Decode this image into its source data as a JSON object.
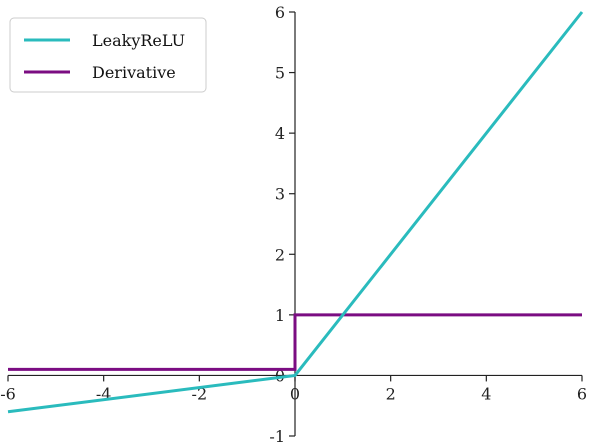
{
  "chart_data": {
    "type": "line",
    "title": "",
    "xlabel": "",
    "ylabel": "",
    "xlim": [
      -6,
      6
    ],
    "ylim": [
      -1,
      6
    ],
    "x_ticks": [
      -6,
      -4,
      -2,
      0,
      2,
      4,
      6
    ],
    "x_tick_labels": [
      "-6",
      "-4",
      "-2",
      "0",
      "2",
      "4",
      "6"
    ],
    "y_ticks": [
      -1,
      0,
      1,
      2,
      3,
      4,
      5,
      6
    ],
    "y_tick_labels": [
      "-1",
      "0",
      "1",
      "2",
      "3",
      "4",
      "5",
      "6"
    ],
    "spines": "centered at origin",
    "grid": false,
    "legend": {
      "placement": "top-left",
      "entries": [
        "LeakyReLU",
        "Derivative"
      ]
    },
    "series": [
      {
        "name": "LeakyReLU",
        "color": "#2ABBBD",
        "x": [
          -6,
          0,
          6
        ],
        "y": [
          -0.6,
          0,
          6
        ]
      },
      {
        "name": "Derivative",
        "color": "#7B0D82",
        "x": [
          -6,
          0,
          0,
          6
        ],
        "y": [
          0.1,
          0.1,
          1,
          1
        ]
      }
    ]
  }
}
